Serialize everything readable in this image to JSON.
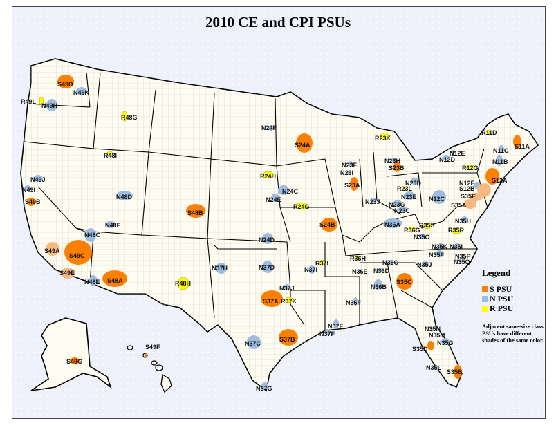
{
  "title": "2010 CE and CPI PSUs",
  "colors": {
    "S": "#ff8000",
    "S_alt": "#f8b880",
    "N": "#9dbde0",
    "R": "#ffff00",
    "land": "#fffdf2",
    "water": "#eef0fc"
  },
  "legend": {
    "title": "Legend",
    "items": [
      {
        "label": "S PSU",
        "type": "S"
      },
      {
        "label": "N PSU",
        "type": "N"
      },
      {
        "label": "R PSU",
        "type": "R"
      }
    ],
    "note": "Adjacent same-size class PSUs have different shades of the same color."
  },
  "psus": [
    {
      "code": "S49D",
      "type": "S"
    },
    {
      "code": "N49K",
      "type": "N"
    },
    {
      "code": "R49L",
      "type": "R"
    },
    {
      "code": "N49H",
      "type": "N"
    },
    {
      "code": "R48G",
      "type": "R"
    },
    {
      "code": "R48I",
      "type": "R"
    },
    {
      "code": "N49J",
      "type": "N"
    },
    {
      "code": "N49I",
      "type": "N"
    },
    {
      "code": "S49B",
      "type": "S"
    },
    {
      "code": "N48D",
      "type": "N"
    },
    {
      "code": "S48B",
      "type": "S"
    },
    {
      "code": "N48F",
      "type": "N"
    },
    {
      "code": "N48C",
      "type": "N"
    },
    {
      "code": "S49A",
      "type": "S_alt"
    },
    {
      "code": "S49C",
      "type": "S"
    },
    {
      "code": "S49E",
      "type": "S_alt"
    },
    {
      "code": "N48E",
      "type": "N"
    },
    {
      "code": "S48A",
      "type": "S"
    },
    {
      "code": "R48H",
      "type": "R"
    },
    {
      "code": "N24F",
      "type": "N"
    },
    {
      "code": "S24A",
      "type": "S"
    },
    {
      "code": "R24H",
      "type": "R"
    },
    {
      "code": "N24C",
      "type": "N"
    },
    {
      "code": "N24E",
      "type": "N"
    },
    {
      "code": "R24G",
      "type": "R"
    },
    {
      "code": "S24B",
      "type": "S"
    },
    {
      "code": "N24D",
      "type": "N"
    },
    {
      "code": "N37H",
      "type": "N"
    },
    {
      "code": "N37D",
      "type": "N"
    },
    {
      "code": "N37I",
      "type": "N"
    },
    {
      "code": "R37L",
      "type": "R"
    },
    {
      "code": "N37J",
      "type": "N"
    },
    {
      "code": "S37A",
      "type": "S"
    },
    {
      "code": "R37K",
      "type": "R"
    },
    {
      "code": "S37B",
      "type": "S"
    },
    {
      "code": "N37C",
      "type": "N"
    },
    {
      "code": "N37G",
      "type": "N"
    },
    {
      "code": "N37E",
      "type": "N"
    },
    {
      "code": "N37F",
      "type": "N"
    },
    {
      "code": "R23K",
      "type": "R"
    },
    {
      "code": "N23F",
      "type": "N"
    },
    {
      "code": "N23I",
      "type": "N"
    },
    {
      "code": "S23A",
      "type": "S"
    },
    {
      "code": "N23H",
      "type": "N"
    },
    {
      "code": "S23B",
      "type": "S"
    },
    {
      "code": "N23J",
      "type": "N"
    },
    {
      "code": "N23D",
      "type": "N"
    },
    {
      "code": "R23L",
      "type": "R"
    },
    {
      "code": "N23E",
      "type": "N"
    },
    {
      "code": "N23G",
      "type": "N"
    },
    {
      "code": "N23C",
      "type": "N"
    },
    {
      "code": "N36A",
      "type": "N"
    },
    {
      "code": "R36G",
      "type": "R"
    },
    {
      "code": "R35S",
      "type": "R"
    },
    {
      "code": "N35O",
      "type": "N"
    },
    {
      "code": "N12C",
      "type": "N"
    },
    {
      "code": "N12E",
      "type": "N"
    },
    {
      "code": "N12D",
      "type": "N"
    },
    {
      "code": "R11D",
      "type": "R"
    },
    {
      "code": "S11A",
      "type": "S"
    },
    {
      "code": "N11C",
      "type": "N"
    },
    {
      "code": "N11B",
      "type": "N"
    },
    {
      "code": "R12G",
      "type": "R"
    },
    {
      "code": "S12A",
      "type": "S"
    },
    {
      "code": "N12F",
      "type": "N"
    },
    {
      "code": "S12B",
      "type": "S_alt"
    },
    {
      "code": "S35E",
      "type": "S_alt"
    },
    {
      "code": "S35A",
      "type": "S_alt"
    },
    {
      "code": "N35H",
      "type": "N"
    },
    {
      "code": "R35R",
      "type": "R"
    },
    {
      "code": "N35K",
      "type": "N"
    },
    {
      "code": "N35I",
      "type": "N"
    },
    {
      "code": "N35F",
      "type": "N"
    },
    {
      "code": "N35P",
      "type": "N"
    },
    {
      "code": "N35Q",
      "type": "N"
    },
    {
      "code": "N35J",
      "type": "N"
    },
    {
      "code": "R36H",
      "type": "R"
    },
    {
      "code": "N36C",
      "type": "N"
    },
    {
      "code": "N36E",
      "type": "N"
    },
    {
      "code": "N36D",
      "type": "N"
    },
    {
      "code": "N36B",
      "type": "N"
    },
    {
      "code": "S35C",
      "type": "S"
    },
    {
      "code": "N36F",
      "type": "N"
    },
    {
      "code": "N35N",
      "type": "N"
    },
    {
      "code": "N35M",
      "type": "N"
    },
    {
      "code": "N35G",
      "type": "N"
    },
    {
      "code": "S35D",
      "type": "S"
    },
    {
      "code": "N35L",
      "type": "N"
    },
    {
      "code": "S35B",
      "type": "S"
    },
    {
      "code": "S49G",
      "type": "S"
    },
    {
      "code": "S49F",
      "type": "S"
    }
  ]
}
